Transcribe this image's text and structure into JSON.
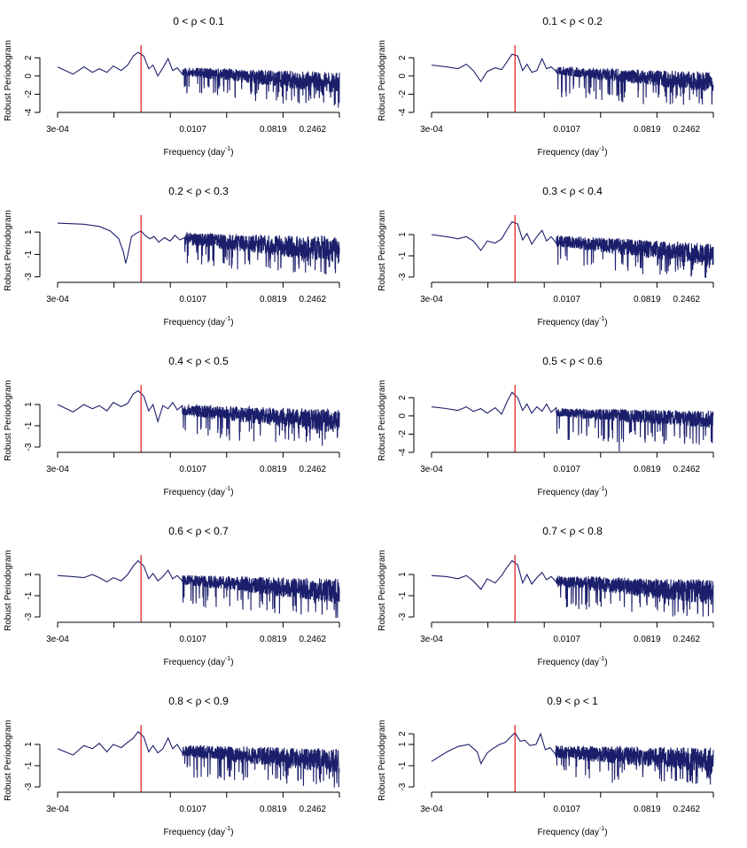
{
  "figure": {
    "xlabel": "Frequency (day",
    "xlabel_sup": "-1",
    "xlabel_close": ")",
    "ylabel": "Robust Periodogram"
  },
  "colors": {
    "series": "#1b1f6b",
    "marker": "#e0151b",
    "axis": "#000000",
    "background": "#ffffff"
  },
  "chart_data": [
    {
      "type": "line",
      "title_left": "0 < ρ <",
      "title_right": "0.1",
      "xscale": "log",
      "xticks": [
        "3e-04",
        "0.0107",
        "0.0819",
        "0.2462"
      ],
      "xlim": [
        0.0003,
        0.5
      ],
      "yticks": [
        "2",
        "0",
        "-2",
        "-4"
      ],
      "ylim": [
        -4,
        3
      ],
      "marker_freq": 0.0027,
      "segments": [
        [
          0.0003,
          1.0
        ],
        [
          0.00045,
          0.2
        ],
        [
          0.0006,
          1.0
        ],
        [
          0.00075,
          0.4
        ],
        [
          0.0009,
          0.8
        ],
        [
          0.0011,
          0.4
        ],
        [
          0.0013,
          1.1
        ],
        [
          0.0016,
          0.6
        ],
        [
          0.0019,
          1.2
        ],
        [
          0.0022,
          2.2
        ],
        [
          0.0025,
          2.6
        ],
        [
          0.0029,
          2.2
        ],
        [
          0.0033,
          0.8
        ],
        [
          0.0037,
          1.2
        ],
        [
          0.0042,
          0.0
        ],
        [
          0.0048,
          0.9
        ],
        [
          0.0055,
          1.9
        ],
        [
          0.0062,
          0.6
        ],
        [
          0.007,
          0.9
        ],
        [
          0.008,
          0.2
        ]
      ],
      "noise": {
        "start": 0.008,
        "level_start": 0.5,
        "level_end": -0.8,
        "amp_start": 0.6,
        "amp_end": 1.6,
        "spikes": -1.8,
        "seed": 11
      }
    },
    {
      "type": "line",
      "title_left": "0.1 < ρ <",
      "title_right": "0.2",
      "xscale": "log",
      "xticks": [
        "3e-04",
        "0.0107",
        "0.0819",
        "0.2462"
      ],
      "xlim": [
        0.0003,
        0.5
      ],
      "yticks": [
        "2",
        "0",
        "-2",
        "-4"
      ],
      "ylim": [
        -4,
        3
      ],
      "marker_freq": 0.0027,
      "segments": [
        [
          0.0003,
          1.2
        ],
        [
          0.00045,
          1.0
        ],
        [
          0.0006,
          0.8
        ],
        [
          0.00075,
          1.3
        ],
        [
          0.0009,
          0.6
        ],
        [
          0.0011,
          -0.6
        ],
        [
          0.0013,
          0.5
        ],
        [
          0.0016,
          0.9
        ],
        [
          0.0019,
          0.7
        ],
        [
          0.0022,
          1.6
        ],
        [
          0.0025,
          2.4
        ],
        [
          0.0029,
          2.2
        ],
        [
          0.0033,
          0.6
        ],
        [
          0.0037,
          1.3
        ],
        [
          0.0042,
          0.4
        ],
        [
          0.0048,
          0.6
        ],
        [
          0.0055,
          1.9
        ],
        [
          0.0062,
          0.8
        ],
        [
          0.007,
          1.0
        ],
        [
          0.008,
          0.5
        ]
      ],
      "noise": {
        "start": 0.008,
        "level_start": 0.6,
        "level_end": -0.7,
        "amp_start": 0.6,
        "amp_end": 1.5,
        "spikes": -2.0,
        "seed": 23
      }
    },
    {
      "type": "line",
      "title_left": "0.2 < ρ <",
      "title_right": "0.3",
      "xscale": "log",
      "xticks": [
        "3e-04",
        "0.0107",
        "0.0819",
        "0.2462"
      ],
      "xlim": [
        0.0003,
        0.5
      ],
      "yticks": [
        "1",
        "-1",
        "-3"
      ],
      "ylim": [
        -3.5,
        2.2
      ],
      "marker_freq": 0.0027,
      "segments": [
        [
          0.0003,
          1.8
        ],
        [
          0.0006,
          1.7
        ],
        [
          0.0009,
          1.5
        ],
        [
          0.0012,
          1.1
        ],
        [
          0.0015,
          0.4
        ],
        [
          0.0017,
          -0.8
        ],
        [
          0.0018,
          -1.8
        ],
        [
          0.0019,
          -1.1
        ],
        [
          0.0021,
          0.6
        ],
        [
          0.0024,
          0.9
        ],
        [
          0.0027,
          1.1
        ],
        [
          0.003,
          0.7
        ],
        [
          0.0034,
          0.4
        ],
        [
          0.0038,
          0.6
        ],
        [
          0.0043,
          0.1
        ],
        [
          0.005,
          0.5
        ],
        [
          0.0058,
          0.2
        ],
        [
          0.0066,
          0.7
        ],
        [
          0.0075,
          0.3
        ],
        [
          0.0085,
          0.5
        ]
      ],
      "noise": {
        "start": 0.0085,
        "level_start": 0.4,
        "level_end": -0.6,
        "amp_start": 0.7,
        "amp_end": 1.6,
        "spikes": -1.6,
        "seed": 37
      }
    },
    {
      "type": "line",
      "title_left": "0.3 < ρ <",
      "title_right": "0.4",
      "xscale": "log",
      "xticks": [
        "3e-04",
        "0.0107",
        "0.0819",
        "0.2462"
      ],
      "xlim": [
        0.0003,
        0.5
      ],
      "yticks": [
        "1",
        "-1",
        "-3"
      ],
      "ylim": [
        -3.5,
        2.5
      ],
      "marker_freq": 0.0027,
      "segments": [
        [
          0.0003,
          1.0
        ],
        [
          0.00045,
          0.8
        ],
        [
          0.0006,
          0.6
        ],
        [
          0.00075,
          0.8
        ],
        [
          0.0009,
          0.4
        ],
        [
          0.0011,
          -0.5
        ],
        [
          0.0013,
          0.4
        ],
        [
          0.0016,
          0.2
        ],
        [
          0.0019,
          0.6
        ],
        [
          0.0022,
          1.5
        ],
        [
          0.0025,
          2.2
        ],
        [
          0.0029,
          2.0
        ],
        [
          0.0033,
          0.5
        ],
        [
          0.0037,
          1.1
        ],
        [
          0.0042,
          0.1
        ],
        [
          0.0048,
          0.8
        ],
        [
          0.0055,
          1.4
        ],
        [
          0.0062,
          0.4
        ],
        [
          0.007,
          0.8
        ],
        [
          0.008,
          0.2
        ]
      ],
      "noise": {
        "start": 0.008,
        "level_start": 0.4,
        "level_end": -0.9,
        "amp_start": 0.7,
        "amp_end": 1.4,
        "spikes": -1.6,
        "seed": 41
      }
    },
    {
      "type": "line",
      "title_left": "0.4 < ρ <",
      "title_right": "0.5",
      "xscale": "log",
      "xticks": [
        "3e-04",
        "0.0107",
        "0.0819",
        "0.2462"
      ],
      "xlim": [
        0.0003,
        0.5
      ],
      "yticks": [
        "1",
        "-1",
        "-3"
      ],
      "ylim": [
        -3.5,
        2.5
      ],
      "marker_freq": 0.0027,
      "segments": [
        [
          0.0003,
          1.0
        ],
        [
          0.00045,
          0.3
        ],
        [
          0.0006,
          1.0
        ],
        [
          0.00075,
          0.6
        ],
        [
          0.0009,
          0.9
        ],
        [
          0.0011,
          0.4
        ],
        [
          0.0013,
          1.2
        ],
        [
          0.0016,
          0.8
        ],
        [
          0.0019,
          1.1
        ],
        [
          0.0022,
          2.0
        ],
        [
          0.0025,
          2.3
        ],
        [
          0.0029,
          1.8
        ],
        [
          0.0033,
          0.4
        ],
        [
          0.0037,
          1.0
        ],
        [
          0.0042,
          -0.6
        ],
        [
          0.0048,
          0.9
        ],
        [
          0.0055,
          0.6
        ],
        [
          0.0062,
          1.2
        ],
        [
          0.007,
          0.5
        ],
        [
          0.008,
          0.9
        ]
      ],
      "noise": {
        "start": 0.008,
        "level_start": 0.5,
        "level_end": -0.6,
        "amp_start": 0.7,
        "amp_end": 1.5,
        "spikes": -1.7,
        "seed": 53
      }
    },
    {
      "type": "line",
      "title_left": "0.5 < ρ <",
      "title_right": "0.6",
      "xscale": "log",
      "xticks": [
        "3e-04",
        "0.0107",
        "0.0819",
        "0.2462"
      ],
      "xlim": [
        0.0003,
        0.5
      ],
      "yticks": [
        "2",
        "0",
        "-2",
        "-4"
      ],
      "ylim": [
        -4,
        3
      ],
      "marker_freq": 0.0027,
      "segments": [
        [
          0.0003,
          1.0
        ],
        [
          0.00045,
          0.8
        ],
        [
          0.0006,
          0.6
        ],
        [
          0.00075,
          1.0
        ],
        [
          0.0009,
          0.5
        ],
        [
          0.0011,
          0.8
        ],
        [
          0.0013,
          0.3
        ],
        [
          0.0016,
          0.9
        ],
        [
          0.0019,
          0.2
        ],
        [
          0.0022,
          1.6
        ],
        [
          0.0025,
          2.6
        ],
        [
          0.0029,
          2.0
        ],
        [
          0.0033,
          0.6
        ],
        [
          0.0037,
          1.3
        ],
        [
          0.0042,
          0.3
        ],
        [
          0.0048,
          1.0
        ],
        [
          0.0055,
          0.5
        ],
        [
          0.0062,
          1.3
        ],
        [
          0.007,
          0.4
        ],
        [
          0.008,
          0.9
        ]
      ],
      "noise": {
        "start": 0.008,
        "level_start": 0.4,
        "level_end": -0.4,
        "amp_start": 0.6,
        "amp_end": 1.3,
        "spikes": -2.0,
        "seed": 67,
        "deep": [
          0.042,
          -3.9
        ]
      }
    },
    {
      "type": "line",
      "title_left": "0.6 < ρ <",
      "title_right": "0.7",
      "xscale": "log",
      "xticks": [
        "3e-04",
        "0.0107",
        "0.0819",
        "0.2462"
      ],
      "xlim": [
        0.0003,
        0.5
      ],
      "yticks": [
        "1",
        "-1",
        "-3"
      ],
      "ylim": [
        -3.5,
        2.5
      ],
      "marker_freq": 0.0027,
      "segments": [
        [
          0.0003,
          0.9
        ],
        [
          0.00045,
          0.8
        ],
        [
          0.0006,
          0.7
        ],
        [
          0.00075,
          1.0
        ],
        [
          0.0009,
          0.7
        ],
        [
          0.0011,
          0.3
        ],
        [
          0.0013,
          0.7
        ],
        [
          0.0016,
          0.4
        ],
        [
          0.0019,
          1.0
        ],
        [
          0.0022,
          1.8
        ],
        [
          0.0025,
          2.3
        ],
        [
          0.0029,
          1.8
        ],
        [
          0.0033,
          0.6
        ],
        [
          0.0037,
          1.1
        ],
        [
          0.0042,
          0.4
        ],
        [
          0.0048,
          0.8
        ],
        [
          0.0055,
          1.4
        ],
        [
          0.0062,
          0.6
        ],
        [
          0.007,
          0.9
        ],
        [
          0.008,
          0.4
        ]
      ],
      "noise": {
        "start": 0.008,
        "level_start": 0.5,
        "level_end": -0.6,
        "amp_start": 0.6,
        "amp_end": 1.6,
        "spikes": -1.7,
        "seed": 79
      }
    },
    {
      "type": "line",
      "title_left": "0.7 < ρ <",
      "title_right": "0.8",
      "xscale": "log",
      "xticks": [
        "3e-04",
        "0.0107",
        "0.0819",
        "0.2462"
      ],
      "xlim": [
        0.0003,
        0.5
      ],
      "yticks": [
        "1",
        "-1",
        "-3"
      ],
      "ylim": [
        -3.5,
        2.5
      ],
      "marker_freq": 0.0027,
      "segments": [
        [
          0.0003,
          0.9
        ],
        [
          0.00045,
          0.8
        ],
        [
          0.0006,
          0.6
        ],
        [
          0.00075,
          0.9
        ],
        [
          0.0009,
          0.4
        ],
        [
          0.0011,
          -0.4
        ],
        [
          0.0013,
          0.6
        ],
        [
          0.0016,
          0.2
        ],
        [
          0.0019,
          0.9
        ],
        [
          0.0022,
          1.7
        ],
        [
          0.0025,
          2.3
        ],
        [
          0.0029,
          1.9
        ],
        [
          0.0033,
          0.2
        ],
        [
          0.0037,
          1.0
        ],
        [
          0.0042,
          0.1
        ],
        [
          0.0048,
          0.7
        ],
        [
          0.0055,
          1.2
        ],
        [
          0.0062,
          0.5
        ],
        [
          0.007,
          0.8
        ],
        [
          0.008,
          0.3
        ]
      ],
      "noise": {
        "start": 0.008,
        "level_start": 0.4,
        "level_end": -0.7,
        "amp_start": 0.7,
        "amp_end": 1.6,
        "spikes": -1.7,
        "seed": 89
      }
    },
    {
      "type": "line",
      "title_left": "0.8 < ρ <",
      "title_right": "0.9",
      "xscale": "log",
      "xticks": [
        "3e-04",
        "0.0107",
        "0.0819",
        "0.2462"
      ],
      "xlim": [
        0.0003,
        0.5
      ],
      "yticks": [
        "1",
        "-1",
        "-3"
      ],
      "ylim": [
        -3.5,
        2.5
      ],
      "marker_freq": 0.0027,
      "segments": [
        [
          0.0003,
          0.6
        ],
        [
          0.00045,
          0.0
        ],
        [
          0.0006,
          0.9
        ],
        [
          0.00075,
          0.6
        ],
        [
          0.0009,
          1.1
        ],
        [
          0.0011,
          0.3
        ],
        [
          0.0013,
          1.0
        ],
        [
          0.0016,
          0.7
        ],
        [
          0.0019,
          1.2
        ],
        [
          0.0022,
          1.6
        ],
        [
          0.0025,
          2.2
        ],
        [
          0.0029,
          1.7
        ],
        [
          0.0033,
          0.3
        ],
        [
          0.0037,
          0.9
        ],
        [
          0.0042,
          0.2
        ],
        [
          0.0048,
          0.6
        ],
        [
          0.0055,
          1.6
        ],
        [
          0.0062,
          0.6
        ],
        [
          0.007,
          1.0
        ],
        [
          0.008,
          0.2
        ]
      ],
      "noise": {
        "start": 0.008,
        "level_start": 0.4,
        "level_end": -0.6,
        "amp_start": 0.7,
        "amp_end": 1.6,
        "spikes": -1.7,
        "seed": 97
      }
    },
    {
      "type": "line",
      "title_left": "0.9 < ρ <",
      "title_right": "1",
      "xscale": "log",
      "xticks": [
        "3e-04",
        "0.0107",
        "0.0819",
        "0.2462"
      ],
      "xlim": [
        0.0003,
        0.5
      ],
      "yticks": [
        "2",
        "1",
        "-1",
        "-3"
      ],
      "ylim": [
        -3.5,
        2.5
      ],
      "marker_freq": 0.0027,
      "segments": [
        [
          0.0003,
          -0.6
        ],
        [
          0.00045,
          0.3
        ],
        [
          0.0006,
          0.8
        ],
        [
          0.0008,
          1.0
        ],
        [
          0.001,
          0.3
        ],
        [
          0.0011,
          -0.8
        ],
        [
          0.0013,
          0.2
        ],
        [
          0.0015,
          0.6
        ],
        [
          0.0018,
          1.0
        ],
        [
          0.0021,
          1.2
        ],
        [
          0.0024,
          1.7
        ],
        [
          0.0027,
          2.1
        ],
        [
          0.0031,
          1.3
        ],
        [
          0.0035,
          1.4
        ],
        [
          0.004,
          0.9
        ],
        [
          0.0047,
          1.0
        ],
        [
          0.0053,
          2.0
        ],
        [
          0.006,
          0.5
        ],
        [
          0.0068,
          0.7
        ],
        [
          0.0078,
          0.1
        ]
      ],
      "noise": {
        "start": 0.0078,
        "level_start": 0.3,
        "level_end": -0.5,
        "amp_start": 0.8,
        "amp_end": 1.6,
        "spikes": -1.6,
        "seed": 113,
        "deep": [
          0.035,
          -2.6
        ]
      }
    }
  ]
}
